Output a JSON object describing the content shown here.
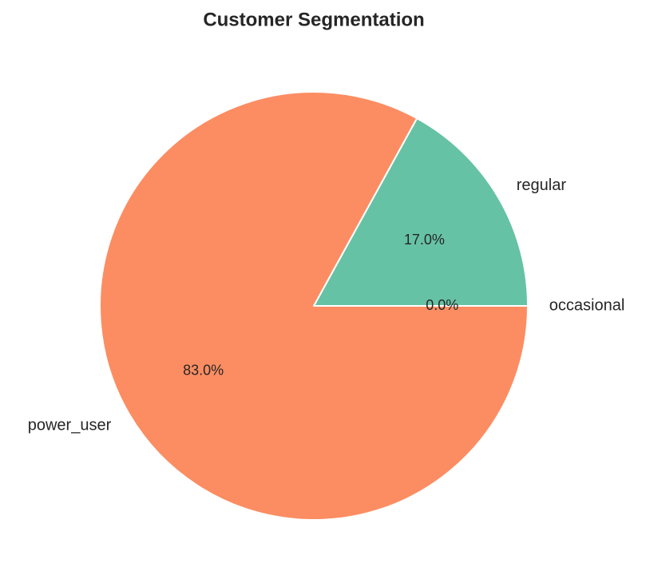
{
  "chart_data": {
    "type": "pie",
    "title": "Customer Segmentation",
    "categories": [
      "regular",
      "power_user",
      "occasional"
    ],
    "values": [
      17.0,
      83.0,
      0.0
    ],
    "value_labels": [
      "17.0%",
      "83.0%",
      "0.0%"
    ],
    "colors": [
      "#66c2a5",
      "#fc8d62",
      "#8da0cb"
    ]
  }
}
